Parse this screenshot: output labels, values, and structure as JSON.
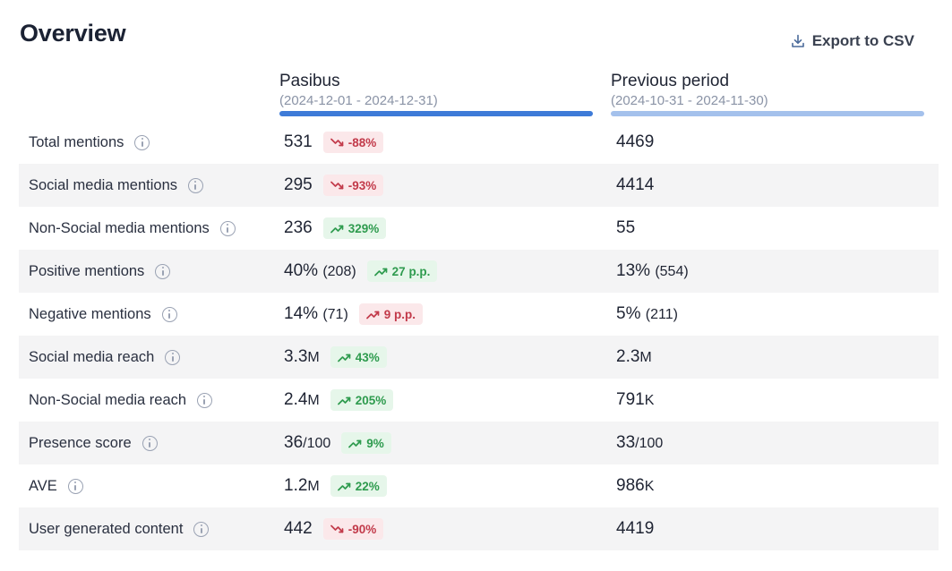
{
  "title": "Overview",
  "export_label": "Export to CSV",
  "columns": [
    {
      "name": "Pasibus",
      "range": "(2024-12-01 - 2024-12-31)"
    },
    {
      "name": "Previous period",
      "range": "(2024-10-31 - 2024-11-30)"
    }
  ],
  "colors": {
    "up": "#2e9b4e",
    "down": "#c23a4a",
    "current_bar": "#3e7bd8",
    "previous_bar": "#a4c1ec"
  },
  "rows": [
    {
      "label": "Total mentions",
      "cur": {
        "main": "531"
      },
      "badge": {
        "dir": "down",
        "tone": "down",
        "text": "-88%"
      },
      "prev": {
        "main": "4469"
      }
    },
    {
      "label": "Social media mentions",
      "cur": {
        "main": "295"
      },
      "badge": {
        "dir": "down",
        "tone": "down",
        "text": "-93%"
      },
      "prev": {
        "main": "4414"
      }
    },
    {
      "label": "Non-Social media mentions",
      "cur": {
        "main": "236"
      },
      "badge": {
        "dir": "up",
        "tone": "up",
        "text": "329%"
      },
      "prev": {
        "main": "55"
      }
    },
    {
      "label": "Positive mentions",
      "cur": {
        "main": "40%",
        "extra": "(208)"
      },
      "badge": {
        "dir": "up",
        "tone": "up",
        "text": "27 p.p."
      },
      "prev": {
        "main": "13%",
        "extra": "(554)"
      }
    },
    {
      "label": "Negative mentions",
      "cur": {
        "main": "14%",
        "extra": "(71)"
      },
      "badge": {
        "dir": "up",
        "tone": "down",
        "text": "9 p.p."
      },
      "prev": {
        "main": "5%",
        "extra": "(211)"
      }
    },
    {
      "label": "Social media reach",
      "cur": {
        "main": "3.3",
        "suffix": "M"
      },
      "badge": {
        "dir": "up",
        "tone": "up",
        "text": "43%"
      },
      "prev": {
        "main": "2.3",
        "suffix": "M"
      }
    },
    {
      "label": "Non-Social media reach",
      "cur": {
        "main": "2.4",
        "suffix": "M"
      },
      "badge": {
        "dir": "up",
        "tone": "up",
        "text": "205%"
      },
      "prev": {
        "main": "791",
        "suffix": "K"
      }
    },
    {
      "label": "Presence score",
      "cur": {
        "main": "36",
        "suffix": "/100"
      },
      "badge": {
        "dir": "up",
        "tone": "up",
        "text": "9%"
      },
      "prev": {
        "main": "33",
        "suffix": "/100"
      }
    },
    {
      "label": "AVE",
      "cur": {
        "main": "1.2",
        "suffix": "M"
      },
      "badge": {
        "dir": "up",
        "tone": "up",
        "text": "22%"
      },
      "prev": {
        "main": "986",
        "suffix": "K"
      }
    },
    {
      "label": "User generated content",
      "cur": {
        "main": "442"
      },
      "badge": {
        "dir": "down",
        "tone": "down",
        "text": "-90%"
      },
      "prev": {
        "main": "4419"
      }
    }
  ]
}
